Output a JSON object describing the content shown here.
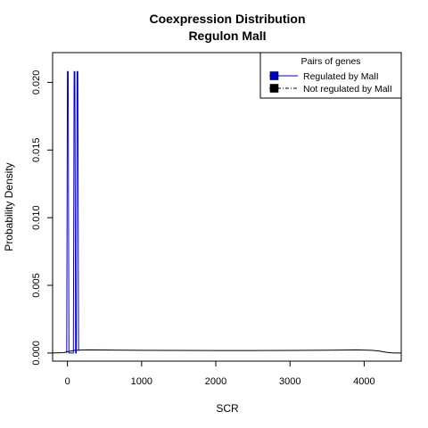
{
  "chart_data": {
    "type": "line",
    "title": "Coexpression Distribution",
    "subtitle": "Regulon MalI",
    "xlabel": "SCR",
    "ylabel": "Probability Density",
    "xlim": [
      -200,
      4500
    ],
    "ylim": [
      -0.0006,
      0.0222
    ],
    "x_ticks": [
      0,
      1000,
      2000,
      3000,
      4000
    ],
    "x_tick_labels": [
      "0",
      "1000",
      "2000",
      "3000",
      "4000"
    ],
    "y_ticks": [
      0.0,
      0.005,
      0.01,
      0.015,
      0.02
    ],
    "y_tick_labels": [
      "0.000",
      "0.005",
      "0.010",
      "0.015",
      "0.020"
    ],
    "grid": false,
    "legend": {
      "title": "Pairs of genes",
      "position": "top-right",
      "entries": [
        "Regulated by  MalI",
        "Not regulated by  MalI"
      ]
    },
    "series": [
      {
        "name": "Regulated by  MalI",
        "color": "#0000cc",
        "line_style": "solid",
        "x": [
          -10,
          0,
          10,
          20,
          40,
          50,
          60,
          70,
          80,
          90,
          100,
          110,
          120,
          130,
          140,
          150,
          160
        ],
        "y": [
          0.0,
          0.0208,
          0.0208,
          0.0,
          0.0,
          0.0,
          0.0,
          0.0,
          0.0,
          0.0208,
          0.0208,
          0.0,
          0.0,
          0.0208,
          0.0208,
          0.0002,
          0.0002
        ]
      },
      {
        "name": "Not regulated by  MalI",
        "color": "#000000",
        "line_style": "solid",
        "x": [
          -200,
          -50,
          0,
          50,
          100,
          200,
          300,
          500,
          1000,
          1500,
          2000,
          2500,
          3000,
          3500,
          3900,
          4100,
          4200,
          4300,
          4400,
          4500
        ],
        "y": [
          0.0,
          3e-05,
          0.0001,
          0.00015,
          0.0002,
          0.00022,
          0.00023,
          0.00022,
          0.0002,
          0.00019,
          0.00018,
          0.00018,
          0.00019,
          0.00021,
          0.00023,
          0.0002,
          0.00015,
          5e-05,
          0.0,
          0.0
        ]
      }
    ]
  }
}
